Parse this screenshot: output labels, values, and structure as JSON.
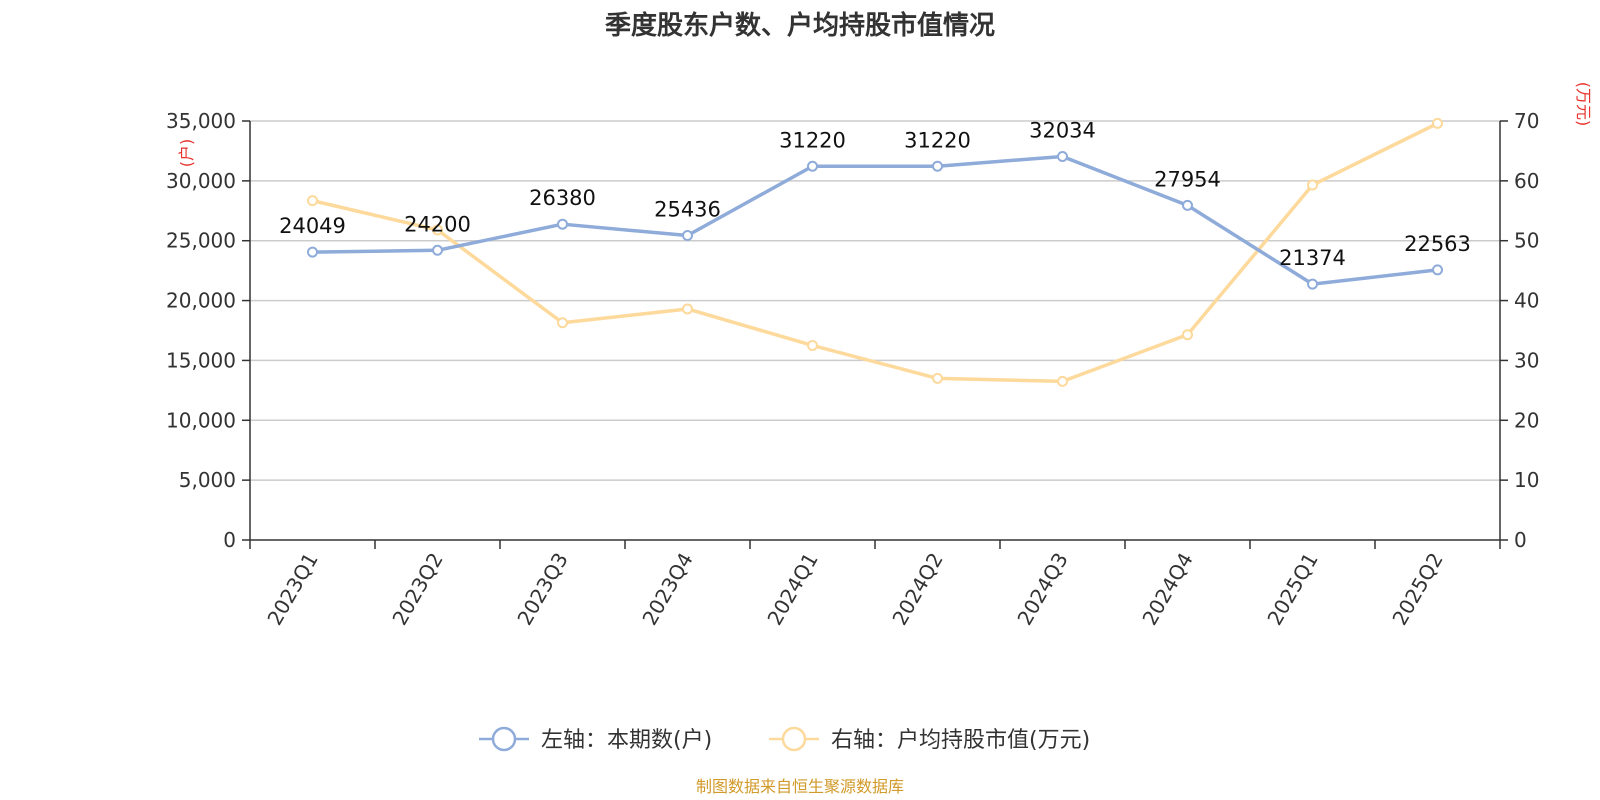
{
  "chart_data": {
    "type": "line",
    "title": "季度股东户数、户均持股市值情况",
    "categories": [
      "2023Q1",
      "2023Q2",
      "2023Q3",
      "2023Q4",
      "2024Q1",
      "2024Q2",
      "2024Q3",
      "2024Q4",
      "2025Q1",
      "2025Q2"
    ],
    "left_axis": {
      "unit": "(户)",
      "ylim": [
        0,
        35000
      ],
      "ticks": [
        "0",
        "5,000",
        "10,000",
        "15,000",
        "20,000",
        "25,000",
        "30,000",
        "35,000"
      ]
    },
    "right_axis": {
      "unit": "(万元)",
      "ylim": [
        0,
        70
      ],
      "ticks": [
        "0",
        "10",
        "20",
        "30",
        "40",
        "50",
        "60",
        "70"
      ]
    },
    "series": [
      {
        "name": "左轴：本期数(户)",
        "axis": "left",
        "color": "#8eabd9",
        "values": [
          24049,
          24200,
          26380,
          25436,
          31220,
          31220,
          32034,
          27954,
          21374,
          22563
        ],
        "labels": [
          "24049",
          "24200",
          "26380",
          "25436",
          "31220",
          "31220",
          "32034",
          "27954",
          "21374",
          "22563"
        ]
      },
      {
        "name": "右轴：户均持股市值(万元)",
        "axis": "right",
        "color": "#fdd99b",
        "values": [
          56.7,
          51.8,
          36.3,
          38.6,
          32.5,
          27.0,
          26.5,
          34.3,
          59.3,
          69.6
        ]
      }
    ],
    "grid": true,
    "legend_position": "bottom"
  },
  "source_note": "制图数据来自恒生聚源数据库"
}
